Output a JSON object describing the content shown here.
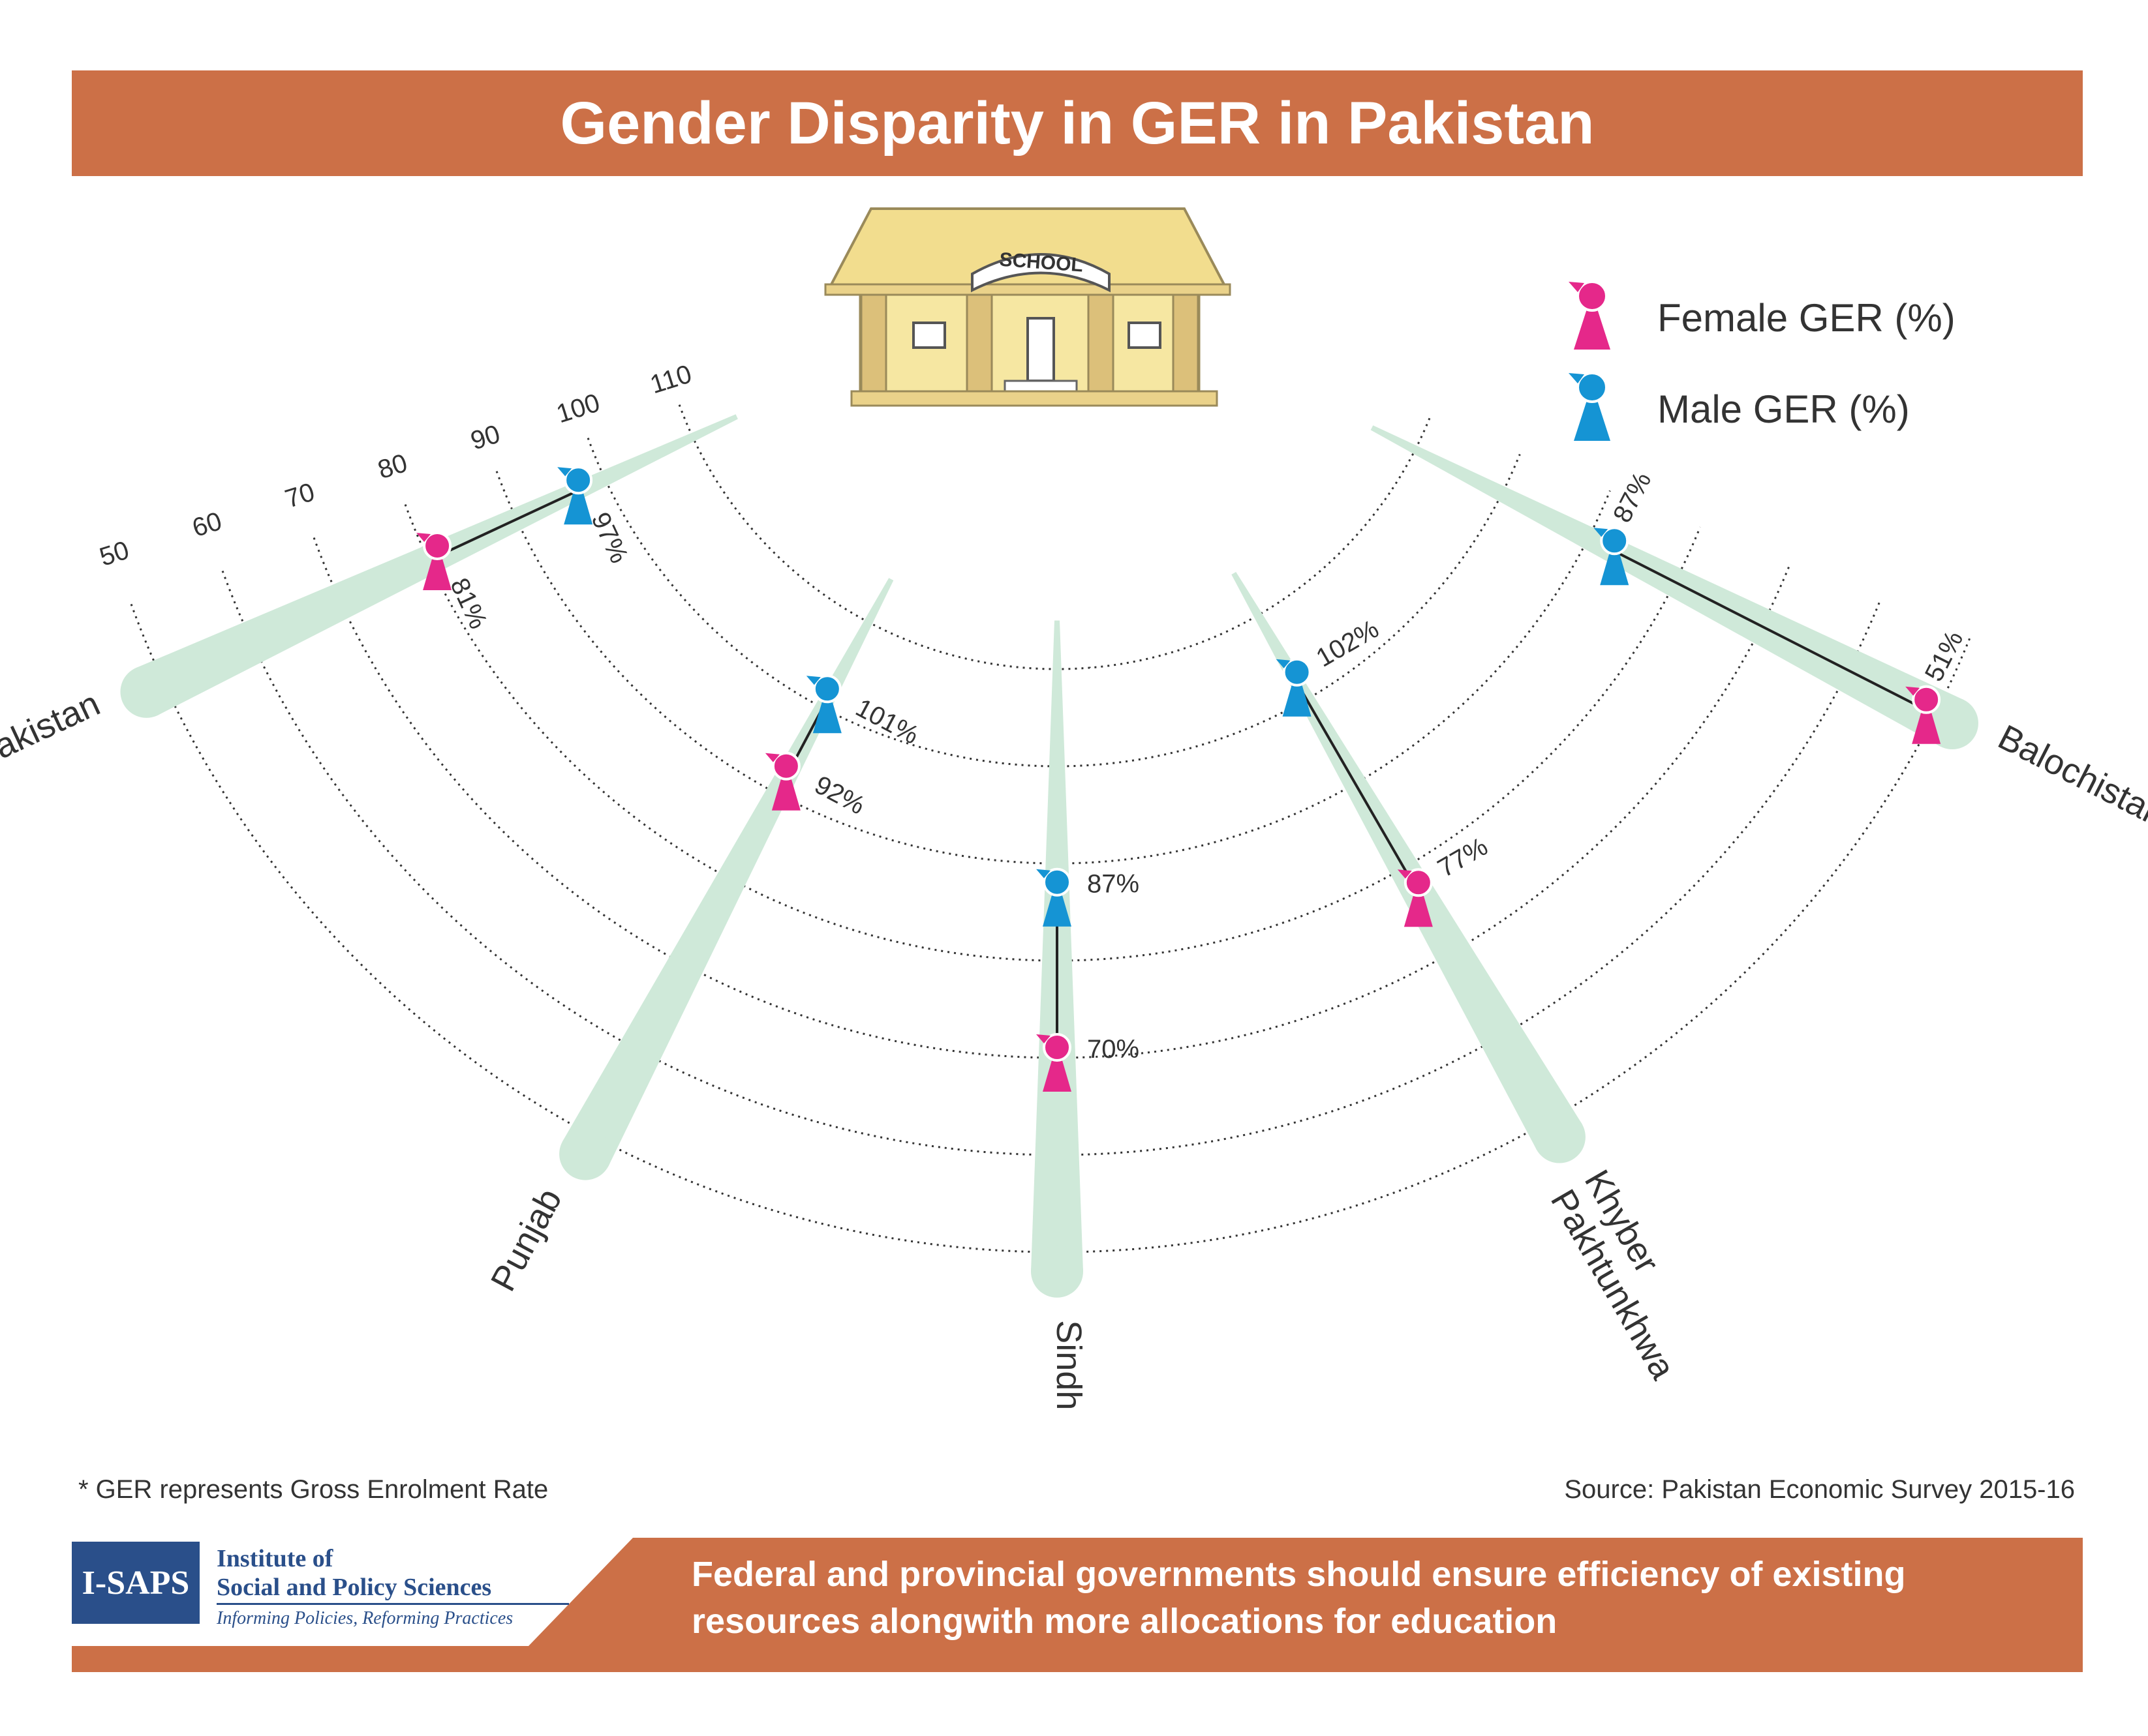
{
  "title": "Gender Disparity in GER in Pakistan",
  "school_sign": "SCHOOL",
  "legend": [
    {
      "label": "Female GER (%)",
      "color": "#e5288a",
      "icon": "female-figure-icon"
    },
    {
      "label": "Male GER (%)",
      "color": "#1594d4",
      "icon": "male-figure-icon"
    }
  ],
  "chart_data": {
    "type": "radial-dumbbell",
    "radial_axis": {
      "ticks": [
        50,
        60,
        70,
        80,
        90,
        100,
        110
      ],
      "range": [
        50,
        110
      ]
    },
    "categories": [
      "Pakistan",
      "Punjab",
      "Sindh",
      "Khyber Pakhtunkhwa",
      "Balochistan"
    ],
    "category_label_lines": [
      [
        "Pakistan"
      ],
      [
        "Punjab"
      ],
      [
        "Sindh"
      ],
      [
        "Khyber",
        "Pakhtunkhwa"
      ],
      [
        "Balochistan"
      ]
    ],
    "series": [
      {
        "name": "Female GER (%)",
        "values": [
          81,
          92,
          70,
          77,
          51
        ],
        "labels": [
          "81%",
          "92%",
          "70%",
          "77%",
          "51%"
        ]
      },
      {
        "name": "Male GER (%)",
        "values": [
          97,
          101,
          87,
          102,
          87
        ],
        "labels": [
          "97%",
          "101%",
          "87%",
          "102%",
          "87%"
        ]
      }
    ]
  },
  "colors": {
    "banner": "#cc7047",
    "track": "#cfe9d9",
    "female": "#e5288a",
    "male": "#1594d4"
  },
  "footnote": "* GER represents Gross Enrolment Rate",
  "source": "Source: Pakistan Economic Survey 2015-16",
  "logo": {
    "mark": "I-SAPS",
    "name_line1": "Institute of",
    "name_line2": "Social and Policy Sciences",
    "tagline": "Informing Policies, Reforming Practices"
  },
  "message": "Federal and provincial governments should ensure efficiency of existing resources alongwith more allocations for education"
}
